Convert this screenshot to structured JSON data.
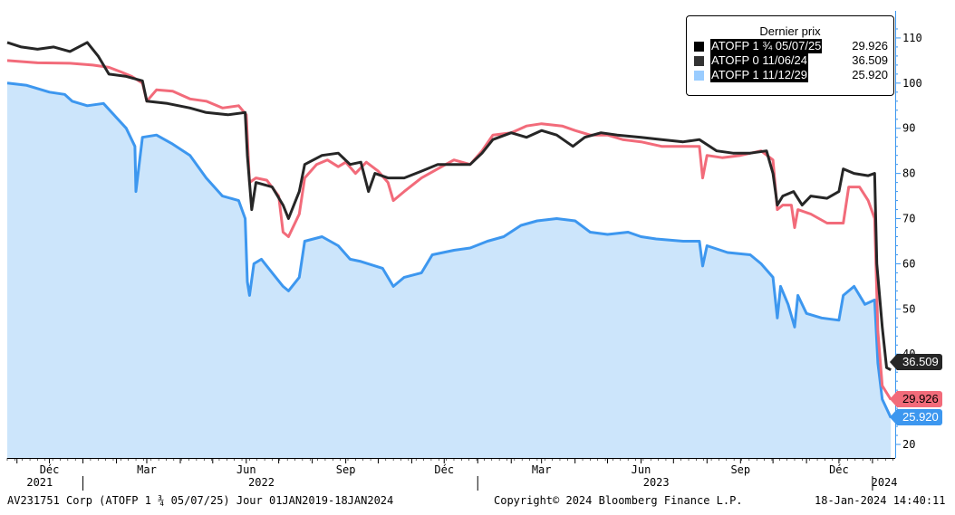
{
  "chart_data": {
    "type": "area",
    "title": "",
    "xlabel": "",
    "ylabel": "",
    "ylim": [
      17,
      116
    ],
    "y_ticks": [
      20,
      30,
      40,
      50,
      60,
      70,
      80,
      90,
      100,
      110
    ],
    "y_axis_side": "right",
    "x_range": [
      "2021-10-23",
      "2024-01-22"
    ],
    "x_month_labels": [
      {
        "label": "Déc",
        "date": "2021-12-01"
      },
      {
        "label": "Mar",
        "date": "2022-03-01"
      },
      {
        "label": "Jun",
        "date": "2022-06-01"
      },
      {
        "label": "Sep",
        "date": "2022-09-01"
      },
      {
        "label": "Déc",
        "date": "2022-12-01"
      },
      {
        "label": "Mar",
        "date": "2023-03-01"
      },
      {
        "label": "Jun",
        "date": "2023-06-01"
      },
      {
        "label": "Sep",
        "date": "2023-09-01"
      },
      {
        "label": "Déc",
        "date": "2023-12-01"
      }
    ],
    "x_year_labels": [
      {
        "label": "2021",
        "date": "2021-11-22"
      },
      {
        "label": "2022",
        "date": "2022-06-15"
      },
      {
        "label": "2023",
        "date": "2023-06-15"
      },
      {
        "label": "2024",
        "date": "2024-01-12"
      }
    ],
    "year_dividers": [
      "2022-01-01",
      "2023-01-01",
      "2024-01-01"
    ],
    "legend": {
      "title": "Dernier prix",
      "placement": "top-right",
      "entries": [
        {
          "name": "ATOFP 1 ¾ 05/07/25",
          "value": "29.926",
          "swatch": "#000000",
          "highlight": true
        },
        {
          "name": "ATOFP 0 11/06/24",
          "value": "36.509",
          "swatch": "#333333",
          "highlight": true
        },
        {
          "name": "ATOFP 1 11/12/29",
          "value": "25.920",
          "swatch": "#99ccff",
          "highlight": true
        }
      ]
    },
    "series": [
      {
        "name": "ATOFP 1 ¾ 05/07/25",
        "color": "#f26b7a",
        "last_value": "29.926",
        "points": [
          [
            "2021-10-23",
            105.0
          ],
          [
            "2021-11-20",
            104.5
          ],
          [
            "2021-12-20",
            104.4
          ],
          [
            "2022-01-10",
            104.0
          ],
          [
            "2022-01-25",
            103.5
          ],
          [
            "2022-02-05",
            102.5
          ],
          [
            "2022-02-15",
            101.5
          ],
          [
            "2022-02-25",
            100.0
          ],
          [
            "2022-03-01",
            96.0
          ],
          [
            "2022-03-10",
            98.5
          ],
          [
            "2022-03-25",
            98.2
          ],
          [
            "2022-04-10",
            96.5
          ],
          [
            "2022-04-25",
            96.0
          ],
          [
            "2022-05-10",
            94.5
          ],
          [
            "2022-05-25",
            95.0
          ],
          [
            "2022-06-01",
            93.0
          ],
          [
            "2022-06-04",
            78.0
          ],
          [
            "2022-06-10",
            79.0
          ],
          [
            "2022-06-20",
            78.5
          ],
          [
            "2022-07-01",
            75.0
          ],
          [
            "2022-07-05",
            67.0
          ],
          [
            "2022-07-10",
            66.0
          ],
          [
            "2022-07-20",
            71.0
          ],
          [
            "2022-07-25",
            79.0
          ],
          [
            "2022-08-05",
            82.0
          ],
          [
            "2022-08-15",
            83.0
          ],
          [
            "2022-08-25",
            81.5
          ],
          [
            "2022-09-01",
            82.5
          ],
          [
            "2022-09-10",
            80.0
          ],
          [
            "2022-09-20",
            82.5
          ],
          [
            "2022-10-01",
            80.5
          ],
          [
            "2022-10-10",
            78.0
          ],
          [
            "2022-10-15",
            74.0
          ],
          [
            "2022-10-25",
            76.0
          ],
          [
            "2022-11-10",
            79.0
          ],
          [
            "2022-11-25",
            81.0
          ],
          [
            "2022-12-10",
            83.0
          ],
          [
            "2022-12-25",
            82.0
          ],
          [
            "2023-01-05",
            85.0
          ],
          [
            "2023-01-15",
            88.5
          ],
          [
            "2023-02-01",
            89.0
          ],
          [
            "2023-02-15",
            90.5
          ],
          [
            "2023-03-01",
            91.0
          ],
          [
            "2023-03-20",
            90.5
          ],
          [
            "2023-04-01",
            89.5
          ],
          [
            "2023-04-15",
            88.5
          ],
          [
            "2023-05-01",
            88.5
          ],
          [
            "2023-05-15",
            87.5
          ],
          [
            "2023-06-01",
            87.0
          ],
          [
            "2023-06-20",
            86.0
          ],
          [
            "2023-07-10",
            86.0
          ],
          [
            "2023-07-25",
            86.0
          ],
          [
            "2023-07-28",
            79.0
          ],
          [
            "2023-08-01",
            84.0
          ],
          [
            "2023-08-15",
            83.5
          ],
          [
            "2023-09-01",
            84.0
          ],
          [
            "2023-09-20",
            85.0
          ],
          [
            "2023-10-01",
            83.0
          ],
          [
            "2023-10-05",
            72.0
          ],
          [
            "2023-10-10",
            73.0
          ],
          [
            "2023-10-18",
            73.0
          ],
          [
            "2023-10-21",
            68.0
          ],
          [
            "2023-10-24",
            72.0
          ],
          [
            "2023-11-05",
            71.0
          ],
          [
            "2023-11-20",
            69.0
          ],
          [
            "2023-12-05",
            69.0
          ],
          [
            "2023-12-10",
            77.0
          ],
          [
            "2023-12-20",
            77.0
          ],
          [
            "2023-12-28",
            74.0
          ],
          [
            "2024-01-03",
            70.0
          ],
          [
            "2024-01-06",
            45.0
          ],
          [
            "2024-01-10",
            33.0
          ],
          [
            "2024-01-18",
            29.926
          ]
        ]
      },
      {
        "name": "ATOFP 0 11/06/24",
        "color": "#262626",
        "last_value": "36.509",
        "points": [
          [
            "2021-10-23",
            109.0
          ],
          [
            "2021-11-05",
            108.0
          ],
          [
            "2021-11-20",
            107.5
          ],
          [
            "2021-12-05",
            108.0
          ],
          [
            "2021-12-20",
            107.0
          ],
          [
            "2022-01-05",
            109.0
          ],
          [
            "2022-01-15",
            106.0
          ],
          [
            "2022-01-25",
            102.0
          ],
          [
            "2022-02-10",
            101.5
          ],
          [
            "2022-02-25",
            100.5
          ],
          [
            "2022-03-01",
            96.0
          ],
          [
            "2022-03-20",
            95.5
          ],
          [
            "2022-04-10",
            94.5
          ],
          [
            "2022-04-25",
            93.5
          ],
          [
            "2022-05-15",
            93.0
          ],
          [
            "2022-05-31",
            93.5
          ],
          [
            "2022-06-02",
            84.0
          ],
          [
            "2022-06-06",
            72.0
          ],
          [
            "2022-06-10",
            78.0
          ],
          [
            "2022-06-25",
            77.0
          ],
          [
            "2022-07-05",
            73.0
          ],
          [
            "2022-07-10",
            70.0
          ],
          [
            "2022-07-20",
            76.0
          ],
          [
            "2022-07-25",
            82.0
          ],
          [
            "2022-08-10",
            84.0
          ],
          [
            "2022-08-25",
            84.5
          ],
          [
            "2022-09-05",
            82.0
          ],
          [
            "2022-09-15",
            82.5
          ],
          [
            "2022-09-22",
            76.0
          ],
          [
            "2022-09-28",
            80.0
          ],
          [
            "2022-10-10",
            79.0
          ],
          [
            "2022-10-25",
            79.0
          ],
          [
            "2022-11-10",
            80.5
          ],
          [
            "2022-11-25",
            82.0
          ],
          [
            "2022-12-10",
            82.0
          ],
          [
            "2022-12-25",
            82.0
          ],
          [
            "2023-01-05",
            84.5
          ],
          [
            "2023-01-15",
            87.5
          ],
          [
            "2023-02-01",
            89.0
          ],
          [
            "2023-02-15",
            88.0
          ],
          [
            "2023-03-01",
            89.5
          ],
          [
            "2023-03-15",
            88.5
          ],
          [
            "2023-03-30",
            86.0
          ],
          [
            "2023-04-10",
            88.0
          ],
          [
            "2023-04-25",
            89.0
          ],
          [
            "2023-05-10",
            88.5
          ],
          [
            "2023-06-01",
            88.0
          ],
          [
            "2023-06-20",
            87.5
          ],
          [
            "2023-07-10",
            87.0
          ],
          [
            "2023-07-25",
            87.5
          ],
          [
            "2023-08-10",
            85.0
          ],
          [
            "2023-08-25",
            84.5
          ],
          [
            "2023-09-10",
            84.5
          ],
          [
            "2023-09-25",
            85.0
          ],
          [
            "2023-10-01",
            80.0
          ],
          [
            "2023-10-05",
            73.0
          ],
          [
            "2023-10-10",
            75.0
          ],
          [
            "2023-10-20",
            76.0
          ],
          [
            "2023-10-28",
            73.0
          ],
          [
            "2023-11-05",
            75.0
          ],
          [
            "2023-11-20",
            74.5
          ],
          [
            "2023-12-01",
            76.0
          ],
          [
            "2023-12-05",
            81.0
          ],
          [
            "2023-12-15",
            80.0
          ],
          [
            "2023-12-28",
            79.5
          ],
          [
            "2024-01-03",
            80.0
          ],
          [
            "2024-01-05",
            60.0
          ],
          [
            "2024-01-10",
            46.0
          ],
          [
            "2024-01-14",
            37.0
          ],
          [
            "2024-01-18",
            36.509
          ]
        ]
      },
      {
        "name": "ATOFP 1 11/12/29",
        "color": "#3d97ef",
        "fill": "#cce5fb",
        "last_value": "25.920",
        "points": [
          [
            "2021-10-23",
            100.0
          ],
          [
            "2021-11-10",
            99.5
          ],
          [
            "2021-12-01",
            98.0
          ],
          [
            "2021-12-15",
            97.5
          ],
          [
            "2021-12-22",
            96.0
          ],
          [
            "2022-01-05",
            95.0
          ],
          [
            "2022-01-20",
            95.5
          ],
          [
            "2022-02-10",
            90.0
          ],
          [
            "2022-02-18",
            86.0
          ],
          [
            "2022-02-19",
            76.0
          ],
          [
            "2022-02-25",
            88.0
          ],
          [
            "2022-03-10",
            88.5
          ],
          [
            "2022-03-25",
            86.5
          ],
          [
            "2022-04-10",
            84.0
          ],
          [
            "2022-04-25",
            79.0
          ],
          [
            "2022-05-10",
            75.0
          ],
          [
            "2022-05-25",
            74.0
          ],
          [
            "2022-05-31",
            70.0
          ],
          [
            "2022-06-02",
            56.0
          ],
          [
            "2022-06-04",
            53.0
          ],
          [
            "2022-06-08",
            60.0
          ],
          [
            "2022-06-15",
            61.0
          ],
          [
            "2022-06-25",
            58.0
          ],
          [
            "2022-07-05",
            55.0
          ],
          [
            "2022-07-10",
            54.0
          ],
          [
            "2022-07-20",
            57.0
          ],
          [
            "2022-07-25",
            65.0
          ],
          [
            "2022-08-10",
            66.0
          ],
          [
            "2022-08-25",
            64.0
          ],
          [
            "2022-09-05",
            61.0
          ],
          [
            "2022-09-15",
            60.5
          ],
          [
            "2022-10-05",
            59.0
          ],
          [
            "2022-10-15",
            55.0
          ],
          [
            "2022-10-25",
            57.0
          ],
          [
            "2022-11-10",
            58.0
          ],
          [
            "2022-11-20",
            62.0
          ],
          [
            "2022-12-10",
            63.0
          ],
          [
            "2022-12-25",
            63.5
          ],
          [
            "2023-01-10",
            65.0
          ],
          [
            "2023-01-25",
            66.0
          ],
          [
            "2023-02-10",
            68.5
          ],
          [
            "2023-02-25",
            69.5
          ],
          [
            "2023-03-15",
            70.0
          ],
          [
            "2023-04-01",
            69.5
          ],
          [
            "2023-04-15",
            67.0
          ],
          [
            "2023-05-01",
            66.5
          ],
          [
            "2023-05-20",
            67.0
          ],
          [
            "2023-06-01",
            66.0
          ],
          [
            "2023-06-15",
            65.5
          ],
          [
            "2023-07-10",
            65.0
          ],
          [
            "2023-07-25",
            65.0
          ],
          [
            "2023-07-28",
            59.5
          ],
          [
            "2023-08-01",
            64.0
          ],
          [
            "2023-08-20",
            62.5
          ],
          [
            "2023-09-10",
            62.0
          ],
          [
            "2023-09-20",
            60.0
          ],
          [
            "2023-10-01",
            57.0
          ],
          [
            "2023-10-05",
            48.0
          ],
          [
            "2023-10-08",
            55.0
          ],
          [
            "2023-10-15",
            51.0
          ],
          [
            "2023-10-21",
            46.0
          ],
          [
            "2023-10-24",
            53.0
          ],
          [
            "2023-11-01",
            49.0
          ],
          [
            "2023-11-15",
            48.0
          ],
          [
            "2023-12-01",
            47.5
          ],
          [
            "2023-12-05",
            53.0
          ],
          [
            "2023-12-15",
            55.0
          ],
          [
            "2023-12-25",
            51.0
          ],
          [
            "2024-01-03",
            52.0
          ],
          [
            "2024-01-06",
            38.0
          ],
          [
            "2024-01-10",
            30.0
          ],
          [
            "2024-01-18",
            25.92
          ]
        ]
      }
    ]
  },
  "badges": [
    {
      "value": "36.509",
      "bg": "#262626",
      "fg": "#ffffff",
      "y_value": 38.3
    },
    {
      "value": "29.926",
      "bg": "#f26b7a",
      "fg": "#000000",
      "y_value": 30.1
    },
    {
      "value": "25.920",
      "bg": "#3d97ef",
      "fg": "#ffffff",
      "y_value": 26.0
    }
  ],
  "footer": {
    "security": "AV231751 Corp (ATOFP 1 ¾ 05/07/25) Jour 01JAN2019-18JAN2024",
    "copyright": "Copyright© 2024 Bloomberg Finance L.P.",
    "timestamp": "18-Jan-2024 14:40:11"
  }
}
